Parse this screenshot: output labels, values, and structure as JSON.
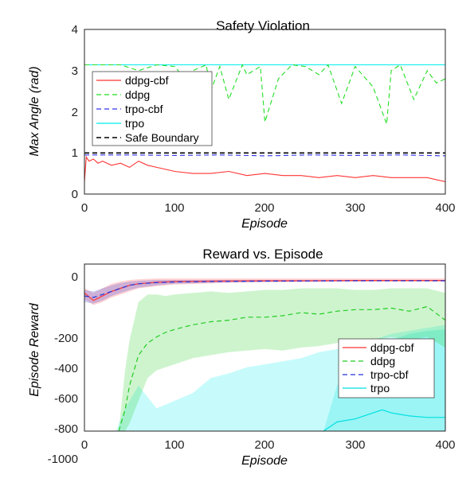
{
  "chart_data": [
    {
      "type": "line",
      "title": "Safety Violation",
      "xlabel": "Episode",
      "ylabel": "Max Angle (rad)",
      "xlim": [
        0,
        400
      ],
      "ylim": [
        0,
        4
      ],
      "xticks": [
        "0",
        "100",
        "200",
        "300",
        "400"
      ],
      "yticks": [
        "0",
        "1",
        "2",
        "3",
        "4"
      ],
      "grid": false,
      "legend_position": "middle-left",
      "series": [
        {
          "name": "ddpg-cbf",
          "color": "#ff3333",
          "dash": "solid",
          "x": [
            0,
            2,
            5,
            10,
            15,
            20,
            30,
            40,
            50,
            60,
            70,
            80,
            90,
            100,
            120,
            140,
            160,
            180,
            200,
            220,
            240,
            260,
            280,
            300,
            320,
            340,
            360,
            380,
            400
          ],
          "y": [
            0.3,
            0.9,
            0.8,
            0.85,
            0.75,
            0.8,
            0.7,
            0.75,
            0.65,
            0.8,
            0.7,
            0.65,
            0.6,
            0.55,
            0.5,
            0.5,
            0.55,
            0.45,
            0.5,
            0.45,
            0.45,
            0.4,
            0.45,
            0.4,
            0.45,
            0.4,
            0.4,
            0.4,
            0.3
          ]
        },
        {
          "name": "ddpg",
          "color": "#22dd22",
          "dash": "dashed",
          "x": [
            0,
            20,
            40,
            60,
            80,
            100,
            115,
            120,
            135,
            140,
            150,
            160,
            175,
            180,
            195,
            200,
            215,
            230,
            245,
            260,
            270,
            285,
            300,
            320,
            335,
            340,
            350,
            365,
            380,
            390,
            400
          ],
          "y": [
            3.14,
            3.14,
            3.14,
            3.0,
            3.14,
            3.1,
            2.7,
            3.0,
            3.14,
            2.5,
            3.1,
            2.3,
            3.14,
            2.9,
            3.1,
            1.75,
            2.8,
            3.14,
            3.1,
            2.9,
            3.14,
            2.2,
            3.1,
            2.6,
            1.7,
            3.0,
            3.14,
            2.3,
            3.0,
            2.7,
            2.8
          ]
        },
        {
          "name": "trpo-cbf",
          "color": "#3333ee",
          "dash": "dashed",
          "x": [
            0,
            50,
            100,
            150,
            200,
            250,
            300,
            350,
            400
          ],
          "y": [
            0.95,
            0.95,
            0.94,
            0.95,
            0.93,
            0.95,
            0.94,
            0.95,
            0.93
          ]
        },
        {
          "name": "trpo",
          "color": "#00eeee",
          "dash": "solid",
          "x": [
            0,
            400
          ],
          "y": [
            3.14,
            3.14
          ]
        },
        {
          "name": "Safe Boundary",
          "color": "#000000",
          "dash": "dashed",
          "x": [
            0,
            400
          ],
          "y": [
            1.0,
            1.0
          ]
        }
      ]
    },
    {
      "type": "area",
      "title": "Reward vs. Episode",
      "xlabel": "Episode",
      "ylabel": "Episode Reward",
      "xlim": [
        0,
        400
      ],
      "ylim": [
        -1000,
        100
      ],
      "xticks": [
        "0",
        "100",
        "200",
        "300",
        "400"
      ],
      "yticks": [
        "0",
        "-200",
        "-400",
        "-600",
        "-800",
        "-1000"
      ],
      "grid": false,
      "legend_position": "right",
      "series": [
        {
          "name": "ddpg-cbf",
          "color": "#ff3333",
          "dash": "solid",
          "x": [
            0,
            10,
            20,
            30,
            40,
            50,
            60,
            80,
            100,
            150,
            200,
            250,
            300,
            350,
            400
          ],
          "y": [
            -90,
            -140,
            -110,
            -80,
            -60,
            -40,
            -30,
            -20,
            -15,
            -12,
            -10,
            -10,
            -8,
            -8,
            -8
          ],
          "lower": [
            -130,
            -170,
            -150,
            -120,
            -100,
            -80,
            -60,
            -45,
            -35,
            -25,
            -20,
            -18,
            -15,
            -15,
            -15
          ],
          "upper": [
            -60,
            -90,
            -60,
            -30,
            -15,
            -5,
            0,
            5,
            5,
            5,
            5,
            5,
            5,
            5,
            5
          ]
        },
        {
          "name": "ddpg",
          "color": "#22cc22",
          "dash": "dashed",
          "x": [
            38,
            45,
            50,
            60,
            70,
            80,
            90,
            100,
            120,
            140,
            160,
            180,
            200,
            220,
            240,
            260,
            280,
            300,
            320,
            340,
            360,
            380,
            400
          ],
          "y": [
            -1000,
            -860,
            -700,
            -500,
            -420,
            -380,
            -350,
            -330,
            -300,
            -280,
            -270,
            -250,
            -250,
            -240,
            -220,
            -230,
            -210,
            -200,
            -200,
            -190,
            -210,
            -180,
            -270
          ],
          "lower": [
            -1000,
            -1000,
            -950,
            -800,
            -650,
            -600,
            -580,
            -560,
            -520,
            -500,
            -480,
            -470,
            -460,
            -470,
            -450,
            -440,
            -420,
            -400,
            -400,
            -380,
            -400,
            -380,
            -450
          ],
          "upper": [
            -1000,
            -600,
            -400,
            -150,
            -100,
            -100,
            -110,
            -100,
            -90,
            -80,
            -90,
            -80,
            -70,
            -70,
            -60,
            -60,
            -60,
            -70,
            -70,
            -60,
            -60,
            -60,
            -90
          ]
        },
        {
          "name": "trpo-cbf",
          "color": "#2233dd",
          "dash": "dashed",
          "x": [
            0,
            10,
            20,
            30,
            40,
            50,
            60,
            80,
            100,
            150,
            200,
            250,
            300,
            350,
            400
          ],
          "y": [
            -110,
            -120,
            -100,
            -80,
            -60,
            -40,
            -30,
            -22,
            -18,
            -14,
            -12,
            -11,
            -10,
            -10,
            -10
          ],
          "lower": [
            -150,
            -160,
            -140,
            -110,
            -90,
            -70,
            -55,
            -40,
            -30,
            -22,
            -18,
            -15,
            -13,
            -12,
            -12
          ],
          "upper": [
            -70,
            -80,
            -60,
            -40,
            -25,
            -15,
            -10,
            -5,
            -5,
            -5,
            -5,
            -5,
            -5,
            -5,
            -5
          ]
        },
        {
          "name": "trpo",
          "color": "#00e0e0",
          "dash": "solid",
          "x": [
            265,
            280,
            300,
            320,
            330,
            340,
            350,
            360,
            380,
            400
          ],
          "y": [
            -1000,
            -940,
            -920,
            -880,
            -860,
            -880,
            -890,
            -900,
            -910,
            -910
          ],
          "lower": [
            -1000,
            -1000,
            -1000,
            -1000,
            -1000,
            -1000,
            -1000,
            -1000,
            -1000,
            -1000
          ],
          "upper": [
            -1000,
            -700,
            -600,
            -500,
            -420,
            -400,
            -380,
            -360,
            -340,
            -330
          ]
        }
      ]
    }
  ],
  "extra_bands": [
    {
      "color": "#00eeee",
      "x": [
        35,
        45,
        60,
        80,
        100,
        120,
        140,
        160,
        180,
        200,
        220,
        240,
        260,
        280,
        300,
        320,
        340,
        360,
        380,
        400
      ],
      "lower": [
        -1000,
        -1000,
        -1000,
        -1000,
        -1000,
        -1000,
        -1000,
        -1000,
        -1000,
        -1000,
        -1000,
        -1000,
        -1000,
        -1000,
        -1000,
        -1000,
        -1000,
        -1000,
        -1000,
        -1000
      ],
      "upper": [
        -1000,
        -850,
        -700,
        -850,
        -800,
        -750,
        -650,
        -620,
        -580,
        -560,
        -540,
        -520,
        -480,
        -460,
        -420,
        -400,
        -360,
        -340,
        -320,
        -300
      ]
    }
  ]
}
